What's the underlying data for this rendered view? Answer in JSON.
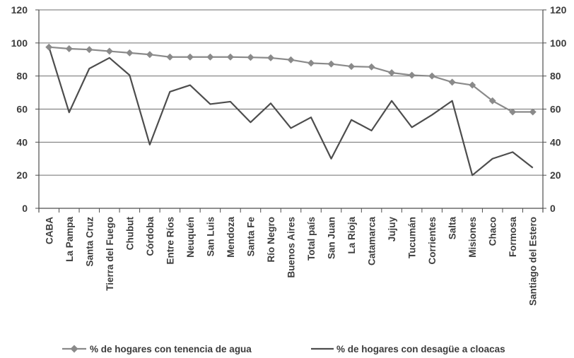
{
  "chart_data": {
    "type": "line",
    "title": "",
    "xlabel": "",
    "ylabel": "",
    "ylim": [
      0,
      120
    ],
    "yticks": [
      0,
      20,
      40,
      60,
      80,
      100,
      120
    ],
    "secondary_axis": true,
    "grid": "horizontal",
    "legend_position": "bottom",
    "categories": [
      "CABA",
      "La Pampa",
      "Santa Cruz",
      "Tierra del Fuego",
      "Chubut",
      "Córdoba",
      "Entre Ríos",
      "Neuquén",
      "San Luis",
      "Mendoza",
      "Santa Fe",
      "Río Negro",
      "Buenos Aires",
      "Total país",
      "San Juan",
      "La Rioja",
      "Catamarca",
      "Jujuy",
      "Tucumán",
      "Corrientes",
      "Salta",
      "Misiones",
      "Chaco",
      "Formosa",
      "Santiago del Estero"
    ],
    "series": [
      {
        "name": "% de hogares con tenencia de agua",
        "color": "#8a8a8a",
        "marker": "diamond",
        "values": [
          97.5,
          96.5,
          96,
          95,
          94,
          93,
          91.5,
          91.5,
          91.5,
          91.5,
          91.3,
          91,
          89.8,
          87.8,
          87.3,
          85.8,
          85.5,
          82,
          80.5,
          80,
          76.3,
          74.5,
          65,
          58.3,
          58.3
        ]
      },
      {
        "name": "% de hogares con desagüe a cloacas",
        "color": "#4d4d4d",
        "marker": "none",
        "values": [
          97.5,
          58,
          84.5,
          91,
          80.5,
          38.5,
          70.5,
          74.5,
          63,
          64.5,
          52,
          63.5,
          48.5,
          55,
          30,
          53.5,
          47,
          65,
          49,
          56.5,
          65,
          20,
          30,
          34,
          24.5
        ]
      }
    ]
  }
}
